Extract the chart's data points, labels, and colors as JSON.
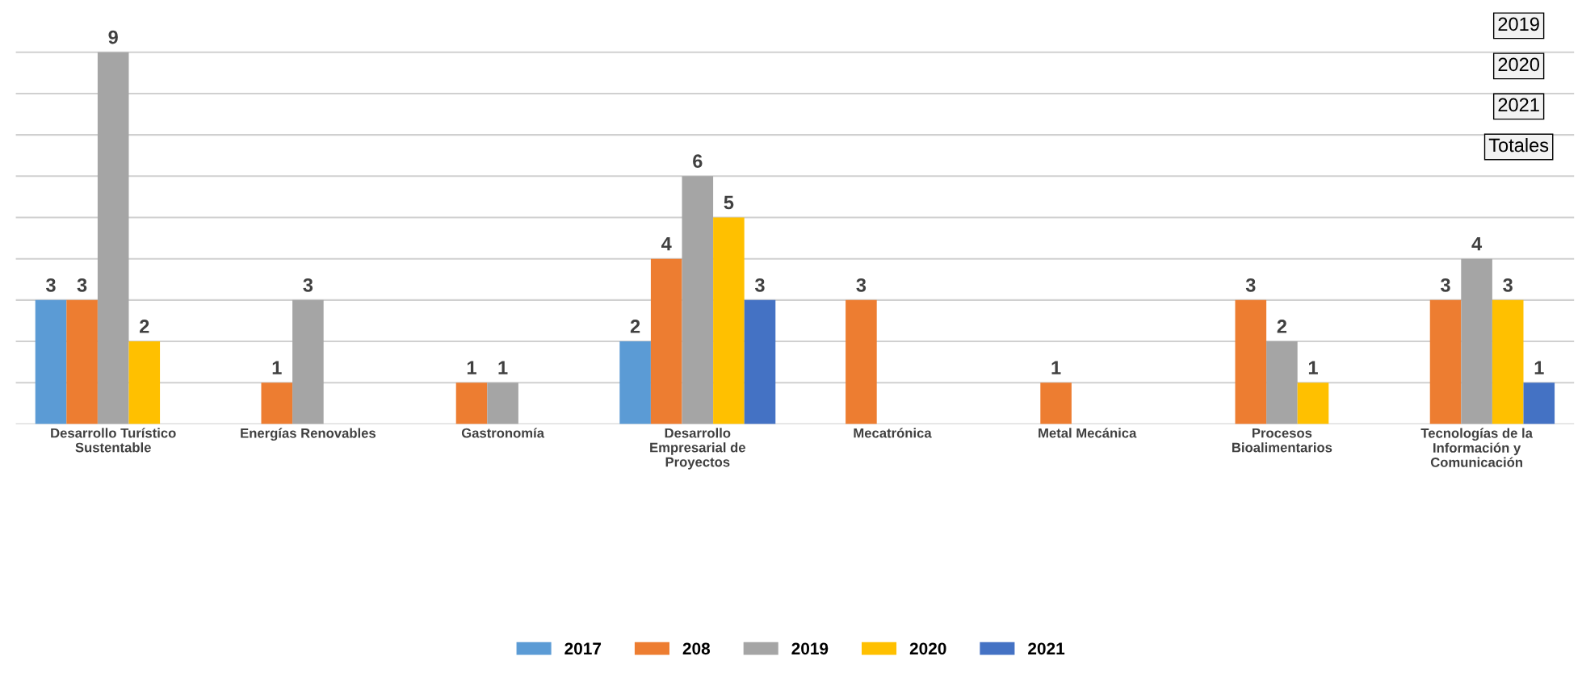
{
  "chart_data": {
    "type": "bar",
    "categories": [
      "Desarrollo Turístico Sustentable",
      "Energías Renovables",
      "Gastronomía",
      "Desarrollo Empresarial de Proyectos",
      "Mecatrónica",
      "Metal Mecánica",
      "Procesos Bioalimentarios",
      "Tecnologías de la Información y Comunicación"
    ],
    "series": [
      {
        "name": "2017",
        "color": "#5b9bd5",
        "values": [
          3,
          null,
          null,
          2,
          null,
          null,
          null,
          null
        ]
      },
      {
        "name": "208",
        "color": "#ed7d31",
        "values": [
          3,
          1,
          1,
          4,
          3,
          1,
          3,
          3
        ]
      },
      {
        "name": "2019",
        "color": "#a5a5a5",
        "values": [
          9,
          3,
          1,
          6,
          null,
          null,
          2,
          4
        ]
      },
      {
        "name": "2020",
        "color": "#ffc000",
        "values": [
          2,
          null,
          null,
          5,
          null,
          null,
          1,
          3
        ]
      },
      {
        "name": "2021",
        "color": "#4472c4",
        "values": [
          null,
          null,
          null,
          3,
          null,
          null,
          null,
          1
        ]
      }
    ],
    "yticks": [
      {
        "value": 0,
        "label": null
      },
      {
        "value": 1,
        "label": null
      },
      {
        "value": 2,
        "label": null
      },
      {
        "value": 3,
        "label": null
      },
      {
        "value": 4,
        "label": null
      },
      {
        "value": 5,
        "label": null
      },
      {
        "value": 6,
        "label": null
      },
      {
        "value": 7,
        "label": null
      },
      {
        "value": 8,
        "label": null
      },
      {
        "value": 9,
        "label": null
      }
    ],
    "grid": "y",
    "data_labels": true,
    "legend": "bottom",
    "annotations": [
      "2019",
      "2020",
      "2021",
      "Totales"
    ]
  }
}
